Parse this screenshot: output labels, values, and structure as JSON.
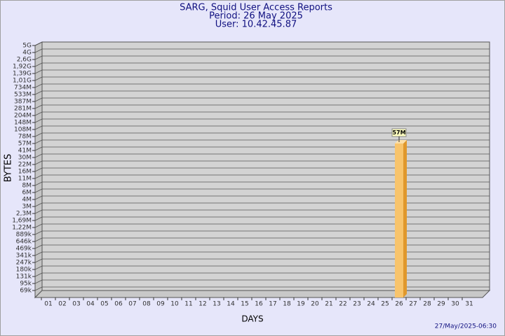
{
  "chart_data": {
    "type": "bar",
    "title": "SARG, Squid User Access Reports",
    "subtitle": "Period: 26 May 2025",
    "user": "User: 10.42.45.87",
    "x_label": "DAYS",
    "y_label": "BYTES",
    "timestamp": "27/May/2025-06:30",
    "color": "#f8c46c",
    "grid": true,
    "categories": [
      "01",
      "02",
      "03",
      "04",
      "05",
      "06",
      "07",
      "08",
      "09",
      "10",
      "11",
      "12",
      "13",
      "14",
      "15",
      "16",
      "17",
      "18",
      "19",
      "20",
      "21",
      "22",
      "23",
      "24",
      "25",
      "26",
      "27",
      "28",
      "29",
      "30",
      "31"
    ],
    "values": [
      null,
      null,
      null,
      null,
      null,
      null,
      null,
      null,
      null,
      null,
      null,
      null,
      null,
      null,
      null,
      null,
      null,
      null,
      null,
      null,
      null,
      null,
      null,
      null,
      null,
      57000000,
      null,
      null,
      null,
      null,
      null
    ],
    "value_labels": [
      null,
      null,
      null,
      null,
      null,
      null,
      null,
      null,
      null,
      null,
      null,
      null,
      null,
      null,
      null,
      null,
      null,
      null,
      null,
      null,
      null,
      null,
      null,
      null,
      null,
      "57M",
      null,
      null,
      null,
      null,
      null
    ],
    "ylim": [
      0,
      5000000000
    ],
    "yticks": [
      {
        "value": 69000,
        "label": "69k"
      },
      {
        "value": 95000,
        "label": "95k"
      },
      {
        "value": 131000,
        "label": "131k"
      },
      {
        "value": 180000,
        "label": "180k"
      },
      {
        "value": 247000,
        "label": "247k"
      },
      {
        "value": 341000,
        "label": "341k"
      },
      {
        "value": 469000,
        "label": "469k"
      },
      {
        "value": 646000,
        "label": "646k"
      },
      {
        "value": 889000,
        "label": "889k"
      },
      {
        "value": 1220000,
        "label": "1,22M"
      },
      {
        "value": 1690000,
        "label": "1,69M"
      },
      {
        "value": 2300000,
        "label": "2,3M"
      },
      {
        "value": 3000000,
        "label": "3M"
      },
      {
        "value": 4000000,
        "label": "4M"
      },
      {
        "value": 6000000,
        "label": "6M"
      },
      {
        "value": 8000000,
        "label": "8M"
      },
      {
        "value": 11000000,
        "label": "11M"
      },
      {
        "value": 16000000,
        "label": "16M"
      },
      {
        "value": 22000000,
        "label": "22M"
      },
      {
        "value": 30000000,
        "label": "30M"
      },
      {
        "value": 41000000,
        "label": "41M"
      },
      {
        "value": 57000000,
        "label": "57M"
      },
      {
        "value": 78000000,
        "label": "78M"
      },
      {
        "value": 108000000,
        "label": "108M"
      },
      {
        "value": 148000000,
        "label": "148M"
      },
      {
        "value": 204000000,
        "label": "204M"
      },
      {
        "value": 281000000,
        "label": "281M"
      },
      {
        "value": 387000000,
        "label": "387M"
      },
      {
        "value": 533000000,
        "label": "533M"
      },
      {
        "value": 734000000,
        "label": "734M"
      },
      {
        "value": 1010000000,
        "label": "1,01G"
      },
      {
        "value": 1390000000,
        "label": "1,39G"
      },
      {
        "value": 1920000000,
        "label": "1,92G"
      },
      {
        "value": 2600000000,
        "label": "2,6G"
      },
      {
        "value": 4000000000,
        "label": "4G"
      },
      {
        "value": 5000000000,
        "label": "5G"
      }
    ]
  }
}
